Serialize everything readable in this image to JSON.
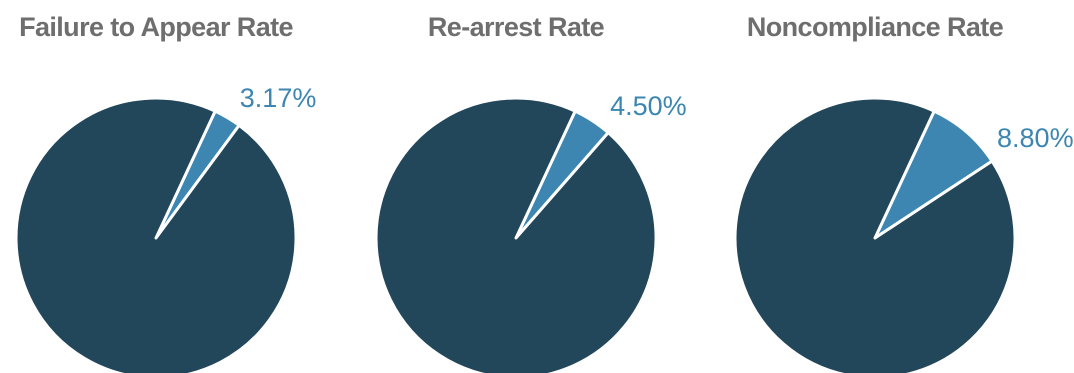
{
  "chart_data": [
    {
      "type": "pie",
      "title": "Failure to Appear Rate",
      "slices": [
        {
          "value": 3.17,
          "label": "3.17%"
        },
        {
          "value": 96.83,
          "label": ""
        }
      ],
      "colors": [
        "#3c86b1",
        "#22465a"
      ]
    },
    {
      "type": "pie",
      "title": "Re-arrest Rate",
      "slices": [
        {
          "value": 4.5,
          "label": "4.50%"
        },
        {
          "value": 95.5,
          "label": ""
        }
      ],
      "colors": [
        "#3c86b1",
        "#22465a"
      ]
    },
    {
      "type": "pie",
      "title": "Noncompliance Rate",
      "slices": [
        {
          "value": 8.8,
          "label": "8.80%"
        },
        {
          "value": 91.2,
          "label": ""
        }
      ],
      "colors": [
        "#3c86b1",
        "#22465a"
      ]
    }
  ],
  "colors": {
    "title_text": "#6e6e6e",
    "label_text": "#3c86b1",
    "separator": "#ffffff"
  }
}
